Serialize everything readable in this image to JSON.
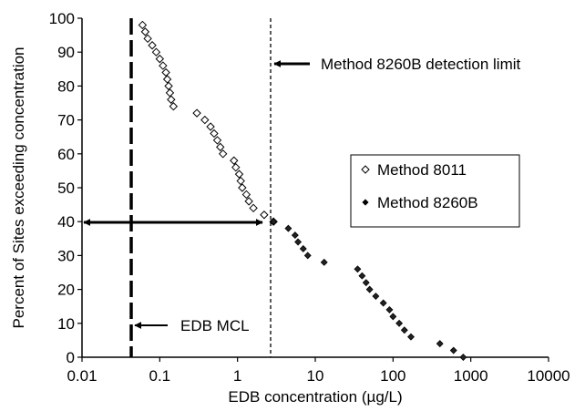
{
  "chart_data": {
    "type": "scatter",
    "x_scale": "log",
    "xlim": [
      0.01,
      10000
    ],
    "ylim": [
      0,
      100
    ],
    "xlabel": "EDB concentration (µg/L)",
    "ylabel": "Percent of Sites exceeding concentration",
    "x_ticks": [
      "0.01",
      "0.1",
      "1",
      "10",
      "100",
      "1000",
      "10000"
    ],
    "y_ticks": [
      "0",
      "10",
      "20",
      "30",
      "40",
      "50",
      "60",
      "70",
      "80",
      "90",
      "100"
    ],
    "grid": false,
    "legend_position": "right",
    "series": [
      {
        "name": "Method 8011",
        "marker": "open-diamond",
        "points": [
          [
            0.06,
            98
          ],
          [
            0.065,
            96
          ],
          [
            0.07,
            94
          ],
          [
            0.08,
            92
          ],
          [
            0.09,
            90
          ],
          [
            0.1,
            88
          ],
          [
            0.11,
            86
          ],
          [
            0.12,
            84
          ],
          [
            0.125,
            82
          ],
          [
            0.13,
            80
          ],
          [
            0.135,
            78
          ],
          [
            0.14,
            76
          ],
          [
            0.15,
            74
          ],
          [
            0.3,
            72
          ],
          [
            0.38,
            70
          ],
          [
            0.45,
            68
          ],
          [
            0.5,
            66
          ],
          [
            0.55,
            64
          ],
          [
            0.6,
            62
          ],
          [
            0.65,
            60
          ],
          [
            0.9,
            58
          ],
          [
            0.95,
            56
          ],
          [
            1.05,
            54
          ],
          [
            1.1,
            52
          ],
          [
            1.15,
            50
          ],
          [
            1.3,
            48
          ],
          [
            1.4,
            46
          ],
          [
            1.6,
            44
          ],
          [
            2.2,
            42
          ],
          [
            2.9,
            40
          ]
        ]
      },
      {
        "name": "Method 8260B",
        "marker": "filled-diamond",
        "points": [
          [
            2.9,
            40
          ],
          [
            4.5,
            38
          ],
          [
            5.5,
            36
          ],
          [
            6,
            34
          ],
          [
            7,
            32
          ],
          [
            8,
            30
          ],
          [
            13,
            28
          ],
          [
            35,
            26
          ],
          [
            40,
            24
          ],
          [
            45,
            22
          ],
          [
            50,
            20
          ],
          [
            60,
            18
          ],
          [
            75,
            16
          ],
          [
            90,
            14
          ],
          [
            100,
            12
          ],
          [
            120,
            10
          ],
          [
            140,
            8
          ],
          [
            170,
            6
          ],
          [
            400,
            4
          ],
          [
            600,
            2
          ],
          [
            800,
            0
          ]
        ]
      }
    ],
    "reference_lines": [
      {
        "x": 0.05,
        "label": "EDB MCL",
        "style": "heavy-dashed"
      },
      {
        "x": 3,
        "label": "Method 8260B detection limit",
        "style": "dashed"
      }
    ],
    "range_arrow": {
      "x_from": 0.01,
      "x_to": 2.5,
      "y": 40
    }
  }
}
